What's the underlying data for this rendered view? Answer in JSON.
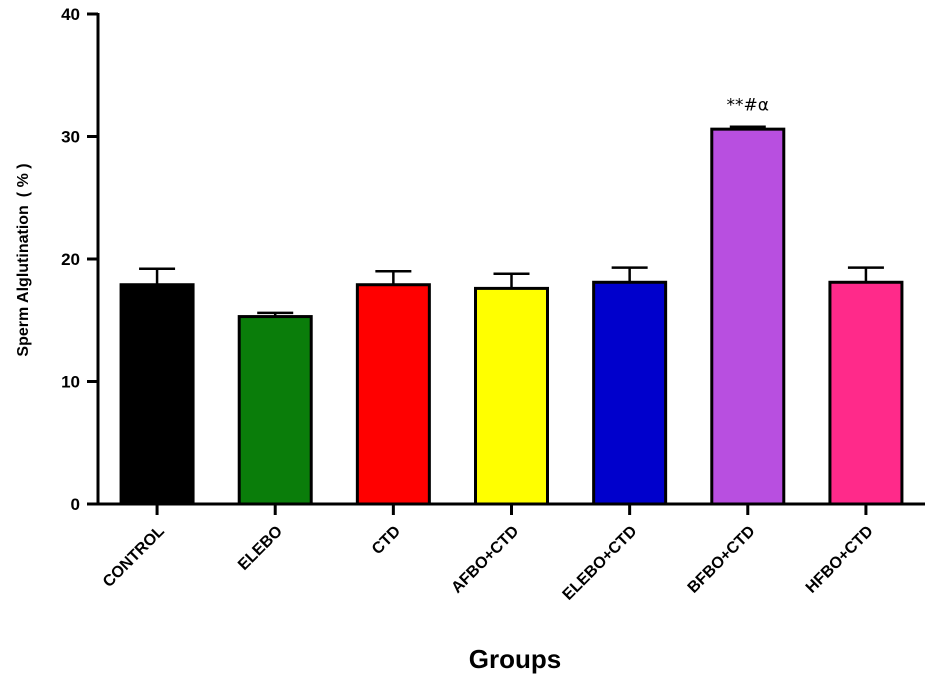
{
  "chart_data": {
    "type": "bar",
    "title": "",
    "xlabel": "Groups",
    "ylabel": "Sperm Alglutination ( % )",
    "ylim": [
      0,
      40
    ],
    "yticks": [
      "0",
      "10",
      "20",
      "30",
      "40"
    ],
    "categories": [
      "CONTROL",
      "ELEBO",
      "CTD",
      "AFBO+CTD",
      "ELEBO+CTD",
      "BFBO+CTD",
      "HFBO+CTD"
    ],
    "values": [
      17.9,
      15.3,
      17.9,
      17.6,
      18.1,
      30.6,
      18.1
    ],
    "errors": [
      1.3,
      0.3,
      1.1,
      1.2,
      1.2,
      0.2,
      1.2
    ],
    "colors": [
      "#000000",
      "#0a7d0a",
      "#ff0000",
      "#ffff00",
      "#0000cc",
      "#b84fe0",
      "#ff2a8a"
    ],
    "annotations": [
      {
        "category": "BFBO+CTD",
        "text": "**#α"
      }
    ],
    "grid": false,
    "legend": "none"
  }
}
